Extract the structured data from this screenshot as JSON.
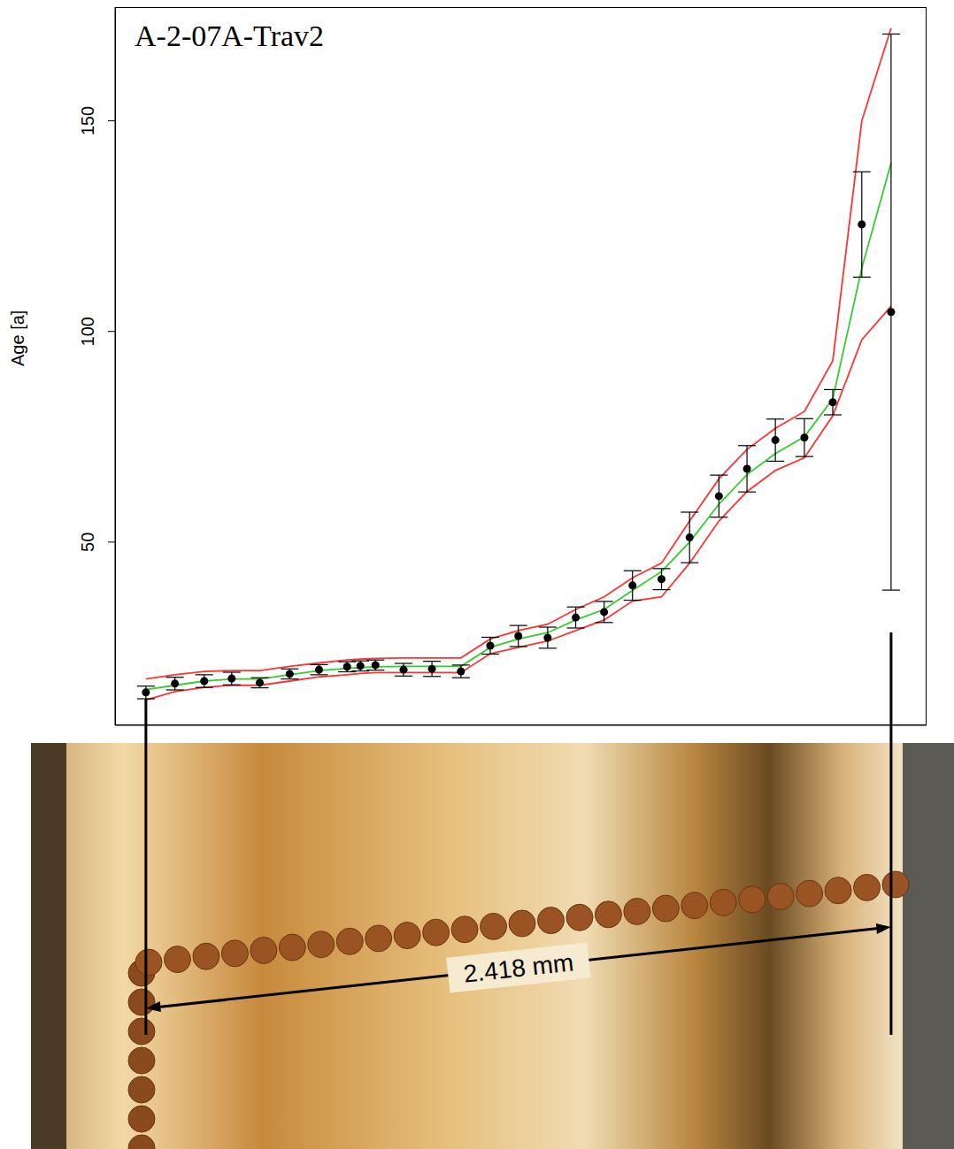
{
  "chart_data": {
    "type": "scatter",
    "title": "A-2-07A-Trav2",
    "y_label": "Age [a]",
    "annotation": "2.418 mm",
    "x": [
      0,
      0.094,
      0.189,
      0.278,
      0.369,
      0.466,
      0.561,
      0.652,
      0.695,
      0.744,
      0.835,
      0.927,
      1.021,
      1.116,
      1.207,
      1.302,
      1.393,
      1.485,
      1.577,
      1.671,
      1.762,
      1.857,
      1.948,
      2.04,
      2.134,
      2.226,
      2.32,
      2.415
    ],
    "values": [
      14.3,
      16.4,
      17.0,
      17.6,
      16.6,
      18.7,
      19.7,
      20.4,
      20.6,
      20.8,
      19.7,
      19.9,
      19.3,
      25.4,
      27.7,
      27.3,
      32.1,
      33.4,
      39.7,
      41.2,
      51.1,
      60.9,
      67.4,
      74.2,
      74.8,
      83.2,
      125.4,
      104.6
    ],
    "errors": [
      1.5,
      1.5,
      1.5,
      1.5,
      1.2,
      1.2,
      1.2,
      1.2,
      1.2,
      1.2,
      1.5,
      1.8,
      1.5,
      2.0,
      2.5,
      2.5,
      2.5,
      2.5,
      3.5,
      2.5,
      6.0,
      5.0,
      5.5,
      5.0,
      4.5,
      3.0,
      12.5,
      66.0
    ],
    "color": "#000000",
    "marker": "circle",
    "series": [
      {
        "type": "line",
        "color": "#33cc33",
        "values": [
          15,
          16,
          17,
          17.5,
          17.5,
          18.5,
          19.5,
          20,
          20.2,
          20.4,
          20.5,
          20.5,
          20.5,
          25,
          27,
          28.5,
          31.5,
          34,
          38.5,
          43,
          50,
          59,
          66,
          71,
          75,
          84,
          115,
          140
        ]
      },
      {
        "type": "line",
        "color": "#ff3333",
        "values": [
          17.5,
          18.5,
          19.3,
          19.5,
          19.5,
          20.5,
          21.3,
          22,
          22.2,
          22.4,
          22.5,
          22.5,
          22.5,
          27,
          29,
          30.5,
          34,
          37,
          41.5,
          45,
          55,
          65,
          72,
          77,
          81,
          93,
          150,
          172
        ]
      },
      {
        "type": "line",
        "color": "#ff3333",
        "values": [
          12.5,
          14.5,
          15.5,
          16,
          16,
          17,
          18,
          18.5,
          18.8,
          19,
          19,
          19,
          19,
          23.5,
          25,
          26.5,
          29,
          31.5,
          36,
          37,
          45,
          55,
          62,
          67,
          70,
          80,
          98,
          106
        ]
      }
    ],
    "xlim": [
      -0.1,
      2.53
    ],
    "ylim": [
      6.5,
      177
    ],
    "xticks": [
      0.5,
      1.0,
      1.5,
      2.0,
      2.5
    ],
    "yticks": [
      50,
      100,
      150
    ],
    "tick_labels": "y"
  }
}
